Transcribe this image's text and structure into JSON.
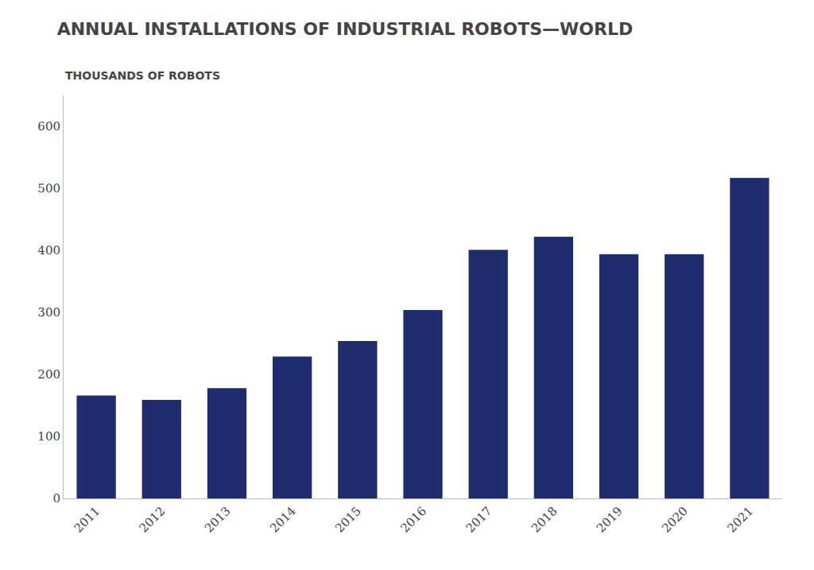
{
  "chart_data": {
    "type": "bar",
    "title": "ANNUAL INSTALLATIONS OF INDUSTRIAL ROBOTS—WORLD",
    "subtitle": "THOUSANDS OF ROBOTS",
    "categories": [
      "2011",
      "2012",
      "2013",
      "2014",
      "2015",
      "2016",
      "2017",
      "2018",
      "2019",
      "2020",
      "2021"
    ],
    "values": [
      166,
      159,
      178,
      229,
      254,
      304,
      401,
      422,
      394,
      394,
      517
    ],
    "color": "#1f2d6e",
    "ylim": [
      0,
      650
    ],
    "yticks": [
      0,
      100,
      200,
      300,
      400,
      500,
      600
    ],
    "grid": false
  }
}
